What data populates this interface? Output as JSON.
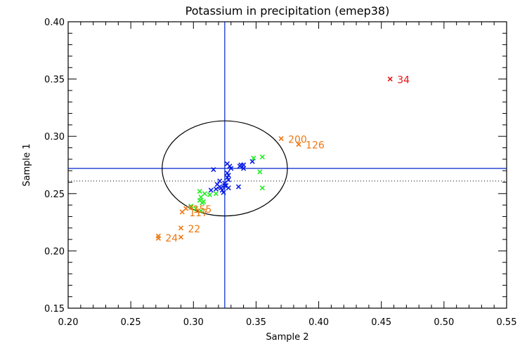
{
  "chart_data": {
    "type": "scatter",
    "title": "Potassium in precipitation (emep38)",
    "xlabel": "Sample 2",
    "ylabel": "Sample 1",
    "xlim": [
      0.2,
      0.55
    ],
    "ylim": [
      0.15,
      0.4
    ],
    "x_ticks": [
      "0.20",
      "0.25",
      "0.30",
      "0.35",
      "0.40",
      "0.45",
      "0.50",
      "0.55"
    ],
    "y_ticks": [
      "0.15",
      "0.20",
      "0.25",
      "0.30",
      "0.35",
      "0.40"
    ],
    "x_tick_values": [
      0.2,
      0.25,
      0.3,
      0.35,
      0.4,
      0.45,
      0.5,
      0.55
    ],
    "y_tick_values": [
      0.15,
      0.2,
      0.25,
      0.3,
      0.35,
      0.4
    ],
    "x_minor_step": 0.01,
    "y_minor_step": 0.01,
    "grid": false,
    "reference_lines": {
      "vertical_x": 0.325,
      "horizontal_y": 0.272,
      "dotted_horizontal_y": 0.261,
      "line_color": "#0022cc"
    },
    "ellipse": {
      "center": [
        0.325,
        0.272
      ],
      "radius_x": 0.05,
      "radius_y": 0.0415,
      "color": "#000000"
    },
    "series": [
      {
        "name": "blue",
        "color": "#0a1ee6",
        "points": [
          [
            0.316,
            0.271
          ],
          [
            0.321,
            0.261
          ],
          [
            0.327,
            0.276
          ],
          [
            0.329,
            0.274
          ],
          [
            0.33,
            0.272
          ],
          [
            0.327,
            0.268
          ],
          [
            0.328,
            0.266
          ],
          [
            0.327,
            0.264
          ],
          [
            0.328,
            0.262
          ],
          [
            0.325,
            0.257
          ],
          [
            0.321,
            0.256
          ],
          [
            0.319,
            0.258
          ],
          [
            0.326,
            0.257
          ],
          [
            0.325,
            0.259
          ],
          [
            0.323,
            0.253
          ],
          [
            0.324,
            0.251
          ],
          [
            0.322,
            0.255
          ],
          [
            0.337,
            0.274
          ],
          [
            0.338,
            0.275
          ],
          [
            0.34,
            0.275
          ],
          [
            0.34,
            0.272
          ],
          [
            0.336,
            0.256
          ],
          [
            0.347,
            0.278
          ],
          [
            0.314,
            0.253
          ],
          [
            0.318,
            0.254
          ],
          [
            0.328,
            0.255
          ]
        ]
      },
      {
        "name": "green",
        "color": "#22ee22",
        "points": [
          [
            0.348,
            0.281
          ],
          [
            0.355,
            0.282
          ],
          [
            0.353,
            0.269
          ],
          [
            0.355,
            0.255
          ],
          [
            0.305,
            0.252
          ],
          [
            0.309,
            0.25
          ],
          [
            0.313,
            0.249
          ],
          [
            0.306,
            0.247
          ],
          [
            0.305,
            0.244
          ],
          [
            0.308,
            0.243
          ],
          [
            0.318,
            0.25
          ],
          [
            0.302,
            0.237
          ],
          [
            0.298,
            0.239
          ],
          [
            0.306,
            0.235
          ],
          [
            0.307,
            0.242
          ]
        ]
      },
      {
        "name": "orange",
        "color": "#ee7711",
        "points": [
          [
            0.37,
            0.298
          ],
          [
            0.384,
            0.293
          ],
          [
            0.272,
            0.213
          ],
          [
            0.272,
            0.211
          ],
          [
            0.29,
            0.212
          ],
          [
            0.29,
            0.22
          ],
          [
            0.291,
            0.234
          ],
          [
            0.298,
            0.238
          ],
          [
            0.294,
            0.237
          ]
        ]
      },
      {
        "name": "red",
        "color": "#ee1111",
        "points": [
          [
            0.457,
            0.35
          ]
        ]
      }
    ],
    "annotations": [
      {
        "text": "200",
        "x": 0.37,
        "y": 0.298,
        "color": "#ee7711"
      },
      {
        "text": "126",
        "x": 0.384,
        "y": 0.293,
        "color": "#ee7711"
      },
      {
        "text": "24",
        "x": 0.272,
        "y": 0.212,
        "color": "#ee7711"
      },
      {
        "text": "22",
        "x": 0.29,
        "y": 0.22,
        "color": "#ee7711"
      },
      {
        "text": "117",
        "x": 0.291,
        "y": 0.234,
        "color": "#ee7711"
      },
      {
        "text": "155",
        "x": 0.294,
        "y": 0.237,
        "color": "#ee7711"
      },
      {
        "text": "34",
        "x": 0.457,
        "y": 0.35,
        "color": "#ee1111"
      }
    ]
  }
}
